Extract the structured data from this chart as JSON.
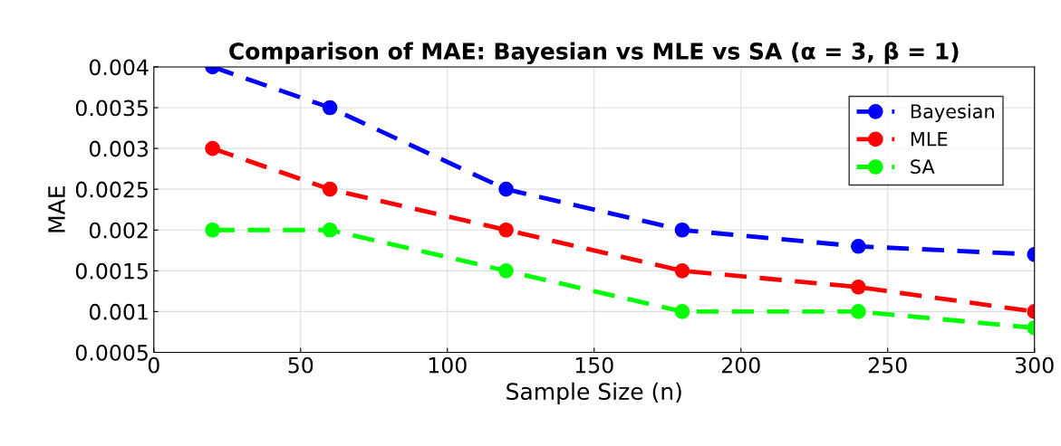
{
  "chart_data": {
    "type": "line",
    "title": "Comparison of MAE: Bayesian vs MLE vs SA (α = 3, β = 1)",
    "xlabel": "Sample Size (n)",
    "ylabel": "MAE",
    "x": [
      20,
      60,
      120,
      180,
      240,
      300
    ],
    "series": [
      {
        "name": "Bayesian",
        "color": "#0000ff",
        "values": [
          0.004,
          0.0035,
          0.0025,
          0.002,
          0.0018,
          0.0017
        ]
      },
      {
        "name": "MLE",
        "color": "#ff0000",
        "values": [
          0.003,
          0.0025,
          0.002,
          0.0015,
          0.0013,
          0.001
        ]
      },
      {
        "name": "SA",
        "color": "#00ff00",
        "values": [
          0.002,
          0.002,
          0.0015,
          0.001,
          0.001,
          0.0008
        ]
      }
    ],
    "xlim": [
      0,
      300
    ],
    "xticks": [
      0,
      50,
      100,
      150,
      200,
      250,
      300
    ],
    "ylim": [
      0.0005,
      0.004
    ],
    "yticks": [
      0.0005,
      0.001,
      0.0015,
      0.002,
      0.0025,
      0.003,
      0.0035,
      0.004
    ],
    "grid": true,
    "legend": "top right",
    "marker": "circle",
    "line_style": "dashed"
  }
}
